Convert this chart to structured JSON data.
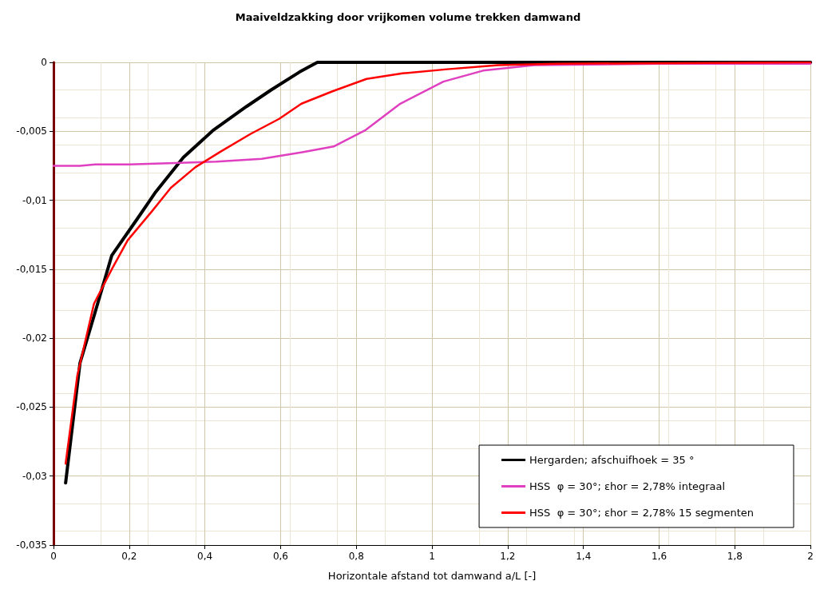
{
  "chart_data": {
    "type": "line",
    "title": "Maaiveldzakking door vrijkomen volume trekken damwand",
    "xlabel": "Horizontale afstand tot damwand a/L [-]",
    "xlim": [
      0,
      2
    ],
    "ylim": [
      -0.035,
      0
    ],
    "xticks": [
      0,
      {
        "value": 0.2,
        "label": "0,2"
      },
      {
        "value": 0.4,
        "label": "0,4"
      },
      {
        "value": 0.6,
        "label": "0,6"
      },
      {
        "value": 0.8,
        "label": "0,8"
      },
      1,
      {
        "value": 1.2,
        "label": "1,2"
      },
      {
        "value": 1.4,
        "label": "1,4"
      },
      {
        "value": 1.6,
        "label": "1,6"
      },
      {
        "value": 1.8,
        "label": "1,8"
      },
      2
    ],
    "yticks": [
      {
        "value": -0.035,
        "label": "-0,035"
      },
      {
        "value": -0.03,
        "label": "-0,03"
      },
      {
        "value": -0.025,
        "label": "-0,025"
      },
      {
        "value": -0.02,
        "label": "-0,02"
      },
      {
        "value": -0.015,
        "label": "-0,015"
      },
      {
        "value": -0.01,
        "label": "-0,01"
      },
      {
        "value": -0.005,
        "label": "-0,005"
      },
      0
    ],
    "grid": true,
    "legend": "bottom right",
    "marker": "none",
    "line_style": "solid",
    "series": [
      {
        "name": "Hergarden; afschuifhoek = 35 °",
        "color": "#000000",
        "x": [
          0.032,
          0.07,
          0.107,
          0.154,
          0.22,
          0.27,
          0.343,
          0.423,
          0.51,
          0.575,
          0.65,
          0.697,
          1.0,
          1.5,
          2.0
        ],
        "values": [
          -0.0305,
          -0.0218,
          -0.0184,
          -0.014,
          -0.0114,
          -0.0094,
          -0.0069,
          -0.0049,
          -0.0032,
          -0.002,
          -0.0007,
          0,
          0,
          0,
          0
        ]
      },
      {
        "name": "HSS  φ = 30°; εhor = 2,78% integraal",
        "color": "#e040c0",
        "x": [
          0,
          0.07,
          0.11,
          0.2,
          0.32,
          0.43,
          0.55,
          0.66,
          0.74,
          0.825,
          0.916,
          1.03,
          1.135,
          1.27,
          1.6,
          2.0
        ],
        "values": [
          -0.0075,
          -0.0075,
          -0.0074,
          -0.0074,
          -0.0073,
          -0.0072,
          -0.007,
          -0.0065,
          -0.0061,
          -0.0049,
          -0.003,
          -0.0014,
          -0.0006,
          -0.0002,
          -0.0001,
          -0.0001
        ]
      },
      {
        "name": "HSS  φ = 30°; εhor = 2,78% 15 segmenten",
        "color": "#ff0000",
        "x": [
          0.032,
          0.063,
          0.107,
          0.154,
          0.196,
          0.26,
          0.31,
          0.375,
          0.44,
          0.52,
          0.596,
          0.655,
          0.737,
          0.827,
          0.922,
          1.04,
          1.175,
          1.33,
          2.0
        ],
        "values": [
          -0.0291,
          -0.0227,
          -0.0175,
          -0.015,
          -0.0129,
          -0.0108,
          -0.0091,
          -0.0076,
          -0.0065,
          -0.0052,
          -0.0041,
          -0.003,
          -0.0021,
          -0.0012,
          -0.0008,
          -0.0005,
          -0.0002,
          -0.0001,
          0
        ]
      }
    ]
  }
}
